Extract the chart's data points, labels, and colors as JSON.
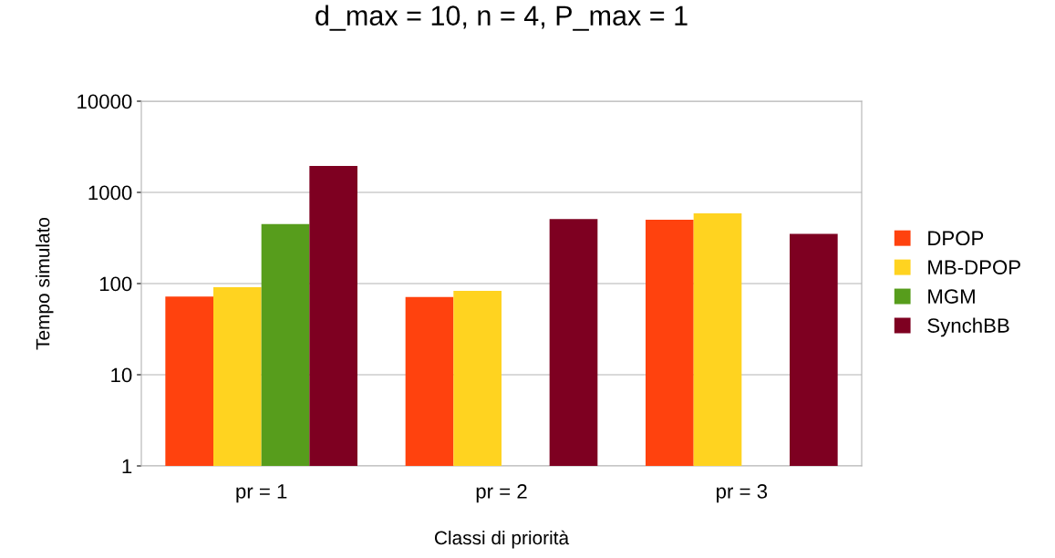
{
  "chart_data": {
    "type": "bar",
    "title": "d_max = 10, n = 4, P_max = 1",
    "xlabel": "Classi di priorità",
    "ylabel": "Tempo simulato",
    "categories": [
      "pr = 1",
      "pr = 2",
      "pr = 3"
    ],
    "series": [
      {
        "name": "DPOP",
        "color": "#ff420e",
        "values": [
          72,
          71,
          500
        ]
      },
      {
        "name": "MB-DPOP",
        "color": "#ffd320",
        "values": [
          91,
          83,
          590
        ]
      },
      {
        "name": "MGM",
        "color": "#579d1c",
        "values": [
          450,
          null,
          null
        ]
      },
      {
        "name": "SynchBB",
        "color": "#7e0021",
        "values": [
          1950,
          510,
          350
        ]
      }
    ],
    "log": "y",
    "ylim": [
      1,
      10000
    ],
    "yticks": [
      1,
      10,
      100,
      1000,
      10000
    ],
    "grid": "y",
    "legend": "right"
  }
}
